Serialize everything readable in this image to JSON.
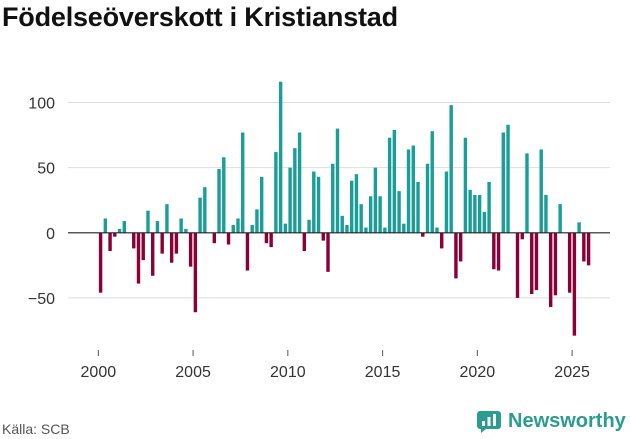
{
  "title": "Födelseöverskott i Kristianstad",
  "source": "Källa: SCB",
  "brand": {
    "name": "Newsworthy",
    "icon": "newsworthy-logo-icon"
  },
  "colors": {
    "positive": "#1a9e97",
    "negative": "#8c0038",
    "grid": "#dddddd",
    "zero": "#222222",
    "brand": "#2a9d8f"
  },
  "chart_data": {
    "type": "bar",
    "title": "Födelseöverskott i Kristianstad",
    "xlabel": "",
    "ylabel": "",
    "ylim": [
      -90,
      125
    ],
    "xlim": [
      1998.4,
      2027.0
    ],
    "yticks": [
      -50,
      0,
      50,
      100
    ],
    "yticklabels": [
      "−50",
      "0",
      "50",
      "100"
    ],
    "xticks": [
      2000,
      2005,
      2010,
      2015,
      2020,
      2025
    ],
    "xticklabels": [
      "2000",
      "2005",
      "2010",
      "2015",
      "2020",
      "2025"
    ],
    "bar_width_years": 0.18,
    "x": [
      2000.12,
      2000.37,
      2000.62,
      2000.87,
      2001.12,
      2001.37,
      2001.62,
      2001.87,
      2002.12,
      2002.37,
      2002.62,
      2002.87,
      2003.12,
      2003.37,
      2003.62,
      2003.87,
      2004.12,
      2004.37,
      2004.62,
      2004.87,
      2005.12,
      2005.37,
      2005.62,
      2005.87,
      2006.12,
      2006.37,
      2006.62,
      2006.87,
      2007.12,
      2007.37,
      2007.62,
      2007.87,
      2008.12,
      2008.37,
      2008.62,
      2008.87,
      2009.12,
      2009.37,
      2009.62,
      2009.87,
      2010.12,
      2010.37,
      2010.62,
      2010.87,
      2011.12,
      2011.37,
      2011.62,
      2011.87,
      2012.12,
      2012.37,
      2012.62,
      2012.87,
      2013.12,
      2013.37,
      2013.62,
      2013.87,
      2014.12,
      2014.37,
      2014.62,
      2014.87,
      2015.12,
      2015.37,
      2015.62,
      2015.87,
      2016.12,
      2016.37,
      2016.62,
      2016.87,
      2017.12,
      2017.37,
      2017.62,
      2017.87,
      2018.12,
      2018.37,
      2018.62,
      2018.87,
      2019.12,
      2019.37,
      2019.62,
      2019.87,
      2020.12,
      2020.37,
      2020.62,
      2020.87,
      2021.12,
      2021.37,
      2021.62,
      2021.87,
      2022.12,
      2022.37,
      2022.62,
      2022.87,
      2023.12,
      2023.37,
      2023.62,
      2023.87,
      2024.12,
      2024.37,
      2024.62,
      2024.87,
      2025.12,
      2025.37,
      2025.62,
      2025.87
    ],
    "values": [
      -46,
      11,
      -14,
      -3,
      3,
      9,
      0,
      -12,
      -39,
      -21,
      17,
      -33,
      9,
      -16,
      22,
      -23,
      -16,
      11,
      3,
      -26,
      -61,
      27,
      35,
      0,
      -8,
      49,
      58,
      -9,
      6,
      11,
      77,
      -29,
      6,
      18,
      43,
      -8,
      -11,
      62,
      116,
      7,
      50,
      65,
      77,
      -14,
      10,
      47,
      43,
      -6,
      -30,
      53,
      80,
      13,
      6,
      40,
      45,
      22,
      4,
      28,
      50,
      28,
      4,
      73,
      79,
      32,
      7,
      64,
      67,
      39,
      -3,
      53,
      78,
      4,
      -12,
      47,
      98,
      -35,
      -22,
      73,
      33,
      29,
      29,
      16,
      39,
      -28,
      -29,
      77,
      83,
      0,
      -50,
      -5,
      61,
      -47,
      -44,
      64,
      29,
      -57,
      -48,
      22,
      0,
      -46,
      -79,
      8,
      -22,
      -25
    ]
  }
}
